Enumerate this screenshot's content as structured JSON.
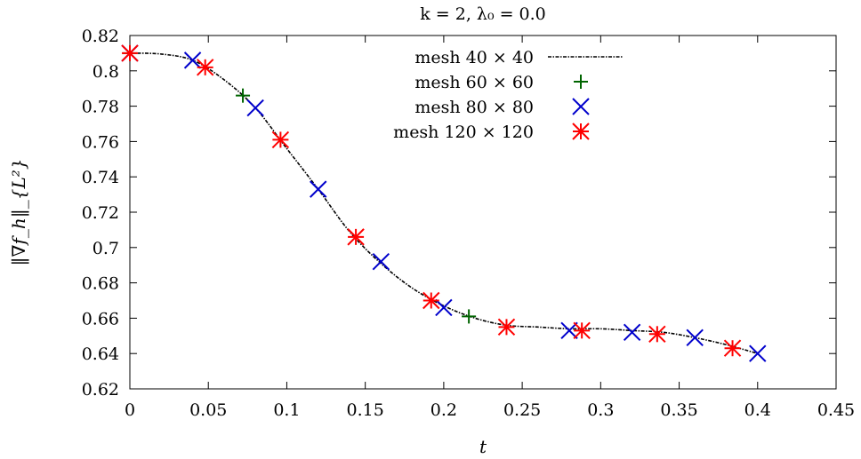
{
  "chart_data": {
    "type": "line",
    "title": "k = 2, λ₀ = 0.0",
    "xlabel": "t",
    "ylabel": "‖∇f_h‖_{L²}",
    "xlim": [
      0,
      0.45
    ],
    "ylim": [
      0.62,
      0.82
    ],
    "xticks": [
      0,
      0.05,
      0.1,
      0.15,
      0.2,
      0.25,
      0.3,
      0.35,
      0.4,
      0.45
    ],
    "yticks": [
      0.62,
      0.64,
      0.66,
      0.68,
      0.7,
      0.72,
      0.74,
      0.76,
      0.78,
      0.8,
      0.82
    ],
    "xtick_labels": [
      "0",
      "0.05",
      "0.1",
      "0.15",
      "0.2",
      "0.25",
      "0.3",
      "0.35",
      "0.4",
      "0.45"
    ],
    "ytick_labels": [
      "0.62",
      "0.64",
      "0.66",
      "0.68",
      "0.7",
      "0.72",
      "0.74",
      "0.76",
      "0.78",
      "0.8",
      "0.82"
    ],
    "grid": false,
    "legend_position": "top-center",
    "series": [
      {
        "name": "mesh 40 × 40",
        "style": "dash-dot-line",
        "color": "#000000",
        "x": [
          0,
          0.02,
          0.04,
          0.06,
          0.08,
          0.1,
          0.12,
          0.14,
          0.16,
          0.18,
          0.2,
          0.22,
          0.24,
          0.26,
          0.28,
          0.3,
          0.32,
          0.34,
          0.36,
          0.38,
          0.4
        ],
        "y": [
          0.81,
          0.8095,
          0.806,
          0.795,
          0.779,
          0.756,
          0.733,
          0.709,
          0.691,
          0.677,
          0.667,
          0.66,
          0.656,
          0.655,
          0.654,
          0.654,
          0.653,
          0.652,
          0.649,
          0.645,
          0.64
        ]
      },
      {
        "name": "mesh 60 × 60",
        "marker": "plus",
        "color": "#006400",
        "x": [
          0,
          0.072,
          0.216
        ],
        "y": [
          0.81,
          0.786,
          0.661
        ]
      },
      {
        "name": "mesh 80 × 80",
        "marker": "cross",
        "color": "#0000cc",
        "x": [
          0,
          0.04,
          0.08,
          0.12,
          0.16,
          0.2,
          0.28,
          0.32,
          0.36,
          0.4
        ],
        "y": [
          0.81,
          0.806,
          0.779,
          0.733,
          0.692,
          0.666,
          0.653,
          0.652,
          0.649,
          0.64
        ]
      },
      {
        "name": "mesh 120 × 120",
        "marker": "star",
        "color": "#ff0000",
        "x": [
          0,
          0.048,
          0.096,
          0.144,
          0.192,
          0.24,
          0.288,
          0.336,
          0.384
        ],
        "y": [
          0.81,
          0.802,
          0.761,
          0.706,
          0.67,
          0.655,
          0.653,
          0.651,
          0.643
        ]
      }
    ]
  }
}
